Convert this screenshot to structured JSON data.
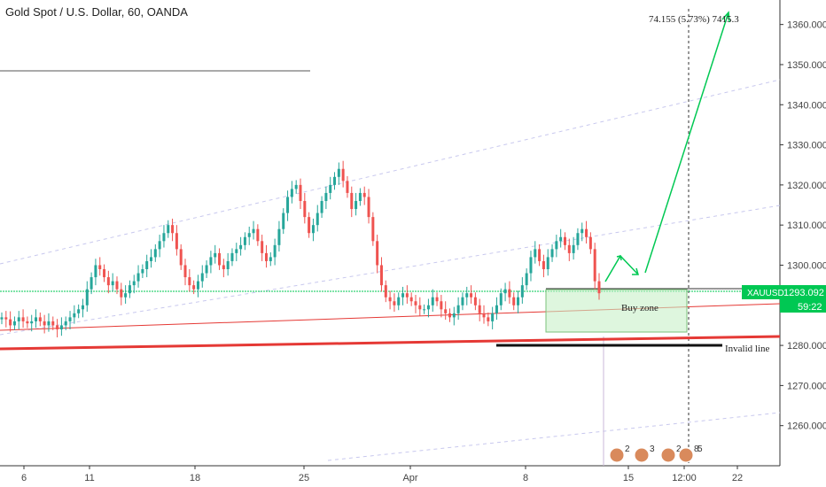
{
  "header": {
    "title": "Gold Spot / U.S. Dollar, 60, OANDA"
  },
  "colors": {
    "up": "#26a69a",
    "down": "#ef5350",
    "accent_green": "#00c853",
    "support_red": "#e53935",
    "buy_zone_fill": "#c8f0c8",
    "guide": "#c8c8ee"
  },
  "chart_data": {
    "type": "candlestick",
    "symbol": "XAUUSD",
    "ylim": [
      1250,
      1365
    ],
    "y_ticks": [
      1260,
      1270,
      1280,
      1290,
      1300,
      1310,
      1320,
      1330,
      1340,
      1350,
      1360
    ],
    "y_tick_labels": [
      "1260.000",
      "1270.000",
      "1280.000",
      "1290.000",
      "1300.000",
      "1310.000",
      "1320.000",
      "1330.000",
      "1340.000",
      "1350.000",
      "1360.000"
    ],
    "x_labels": [
      "6",
      "11",
      "18",
      "25",
      "Apr",
      "8",
      "15",
      "12:00",
      "22"
    ],
    "current_price_label": "1293.092",
    "symbol_tag": "XAUUSD",
    "countdown": "59:22",
    "measure_label": "74.155 (5.73%) 7415.3",
    "buy_zone": {
      "label": "Buy zone",
      "low": 1284,
      "high": 1294
    },
    "invalid_level": {
      "label": "Invalid line",
      "price": 1280
    },
    "close_series": [
      1287,
      1286.5,
      1285,
      1286,
      1287,
      1286,
      1285.5,
      1286,
      1287,
      1286,
      1285,
      1286,
      1285,
      1284,
      1285,
      1286,
      1287,
      1288,
      1289,
      1290,
      1294,
      1297,
      1300,
      1299,
      1297,
      1295,
      1296,
      1294,
      1292,
      1293,
      1295,
      1296,
      1298,
      1299,
      1301,
      1302,
      1304,
      1306,
      1308,
      1310,
      1308,
      1304,
      1300,
      1297,
      1295,
      1294,
      1296,
      1298,
      1300,
      1302,
      1303,
      1300,
      1299,
      1301,
      1303,
      1304,
      1305,
      1307,
      1308,
      1309,
      1306,
      1303,
      1301,
      1302,
      1305,
      1309,
      1313,
      1317,
      1319,
      1320,
      1316,
      1312,
      1308,
      1310,
      1313,
      1316,
      1318,
      1320,
      1322,
      1324,
      1321,
      1318,
      1314,
      1316,
      1318,
      1317,
      1312,
      1306,
      1300,
      1295,
      1292,
      1291,
      1290,
      1292,
      1293,
      1292,
      1291,
      1290,
      1289,
      1289,
      1290,
      1292,
      1291,
      1289,
      1288,
      1287,
      1288,
      1290,
      1292,
      1293,
      1292,
      1290,
      1288,
      1287,
      1286,
      1288,
      1290,
      1293,
      1294,
      1292,
      1290,
      1292,
      1295,
      1298,
      1302,
      1304,
      1301,
      1299,
      1302,
      1304,
      1306,
      1307,
      1305,
      1303,
      1305,
      1308,
      1309,
      1307,
      1304,
      1296,
      1293
    ]
  },
  "markers": [
    {
      "label": "2"
    },
    {
      "label": "3"
    },
    {
      "label": "2"
    },
    {
      "label": "8"
    },
    {
      "label": "5"
    }
  ]
}
